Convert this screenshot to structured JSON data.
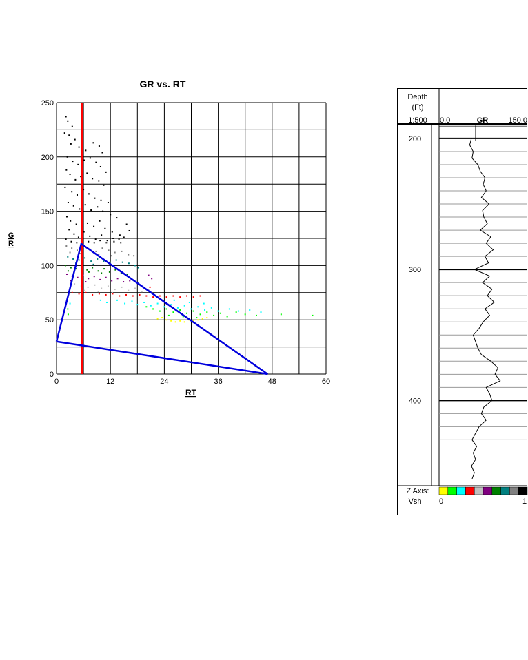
{
  "colors": {
    "background": "#ffffff",
    "grid": "#000000",
    "cutoff_line": "#ff0000",
    "triangle_lines": "#0000dd",
    "log_curve": "#000000",
    "vsh_bins": [
      "#ffff00",
      "#00ff00",
      "#00ffff",
      "#ff0000",
      "#c0c0c0",
      "#800080",
      "#008000",
      "#008080",
      "#808080",
      "#000000"
    ]
  },
  "chart_data": [
    {
      "type": "scatter",
      "title": "GR vs. RT",
      "xlabel": "RT",
      "ylabel": "GR",
      "xlim": [
        0,
        60
      ],
      "ylim": [
        0,
        250
      ],
      "x_ticks": [
        0,
        12,
        24,
        36,
        48,
        60
      ],
      "y_ticks": [
        0,
        50,
        100,
        150,
        200,
        250
      ],
      "grid": true,
      "color_axis": "Vsh",
      "vertical_line": {
        "x": 5.7,
        "color": "red"
      },
      "triangle": [
        [
          0,
          30
        ],
        [
          5.5,
          120
        ],
        [
          47,
          0
        ]
      ],
      "point_groups": [
        {
          "vsh_bin": 9,
          "color": "#000000",
          "points": [
            [
              2.1,
              237
            ],
            [
              2.5,
              233
            ],
            [
              3.5,
              228
            ],
            [
              1.8,
              222
            ],
            [
              2.8,
              220
            ],
            [
              4.1,
              216
            ],
            [
              3.2,
              212
            ],
            [
              5.0,
              209
            ],
            [
              6.5,
              206
            ],
            [
              8.2,
              213
            ],
            [
              9.5,
              210
            ],
            [
              10.2,
              204
            ],
            [
              2.4,
              200
            ],
            [
              3.6,
              196
            ],
            [
              4.8,
              193
            ],
            [
              6.2,
              197
            ],
            [
              7.5,
              199
            ],
            [
              8.8,
              195
            ],
            [
              9.8,
              191
            ],
            [
              11.0,
              186
            ],
            [
              2.2,
              188
            ],
            [
              3.0,
              184
            ],
            [
              4.2,
              179
            ],
            [
              5.4,
              182
            ],
            [
              6.8,
              185
            ],
            [
              8.0,
              180
            ],
            [
              9.4,
              178
            ],
            [
              10.5,
              174
            ],
            [
              1.9,
              172
            ],
            [
              3.4,
              168
            ],
            [
              4.6,
              165
            ],
            [
              6.0,
              170
            ],
            [
              7.2,
              166
            ],
            [
              8.5,
              162
            ],
            [
              9.9,
              160
            ],
            [
              11.5,
              158
            ],
            [
              2.6,
              158
            ],
            [
              3.8,
              155
            ],
            [
              5.1,
              152
            ],
            [
              6.4,
              156
            ],
            [
              7.7,
              151
            ],
            [
              9.1,
              154
            ],
            [
              10.3,
              150
            ],
            [
              12.0,
              147
            ],
            [
              13.4,
              144
            ],
            [
              15.6,
              138
            ],
            [
              16.2,
              132
            ],
            [
              2.3,
              145
            ],
            [
              3.1,
              141
            ],
            [
              4.4,
              138
            ],
            [
              5.6,
              143
            ],
            [
              6.9,
              139
            ],
            [
              8.3,
              136
            ],
            [
              9.6,
              141
            ],
            [
              10.8,
              134
            ],
            [
              12.4,
              131
            ],
            [
              14.1,
              128
            ],
            [
              15.0,
              126
            ],
            [
              2.8,
              133
            ],
            [
              3.9,
              129
            ],
            [
              4.9,
              126
            ],
            [
              6.1,
              131
            ],
            [
              7.4,
              127
            ],
            [
              8.7,
              124
            ],
            [
              10.0,
              128
            ],
            [
              11.3,
              123
            ],
            [
              12.8,
              122
            ],
            [
              14.3,
              121
            ],
            [
              2.1,
              124
            ],
            [
              3.3,
              122
            ],
            [
              4.5,
              121
            ],
            [
              5.9,
              124
            ],
            [
              7.1,
              122
            ],
            [
              8.4,
              121
            ],
            [
              9.7,
              123
            ],
            [
              11.1,
              121
            ],
            [
              12.6,
              125
            ],
            [
              13.9,
              124
            ]
          ]
        },
        {
          "vsh_bin": 8,
          "color": "#808080",
          "points": [
            [
              2.2,
              118
            ],
            [
              3.4,
              116
            ],
            [
              4.6,
              114
            ],
            [
              6.0,
              117
            ],
            [
              7.4,
              115
            ],
            [
              8.8,
              113
            ],
            [
              10.2,
              116
            ],
            [
              11.6,
              114
            ],
            [
              13.0,
              112
            ],
            [
              14.5,
              113
            ],
            [
              16.0,
              110
            ],
            [
              17.2,
              109
            ],
            [
              3.0,
              112
            ],
            [
              5.2,
              111
            ],
            [
              9.4,
              110
            ],
            [
              12.2,
              109
            ]
          ]
        },
        {
          "vsh_bin": 7,
          "color": "#008080",
          "points": [
            [
              2.5,
              108
            ],
            [
              3.7,
              106
            ],
            [
              5.0,
              105
            ],
            [
              6.3,
              107
            ],
            [
              7.7,
              104
            ],
            [
              9.1,
              106
            ],
            [
              10.5,
              104
            ],
            [
              11.9,
              103
            ],
            [
              13.3,
              105
            ],
            [
              14.7,
              103
            ],
            [
              16.1,
              102
            ],
            [
              17.5,
              100
            ],
            [
              18.2,
              98
            ],
            [
              4.3,
              102
            ],
            [
              8.2,
              101
            ],
            [
              12.6,
              100
            ]
          ]
        },
        {
          "vsh_bin": 6,
          "color": "#008000",
          "points": [
            [
              2.0,
              100
            ],
            [
              3.2,
              98
            ],
            [
              4.4,
              97
            ],
            [
              5.6,
              99
            ],
            [
              6.8,
              96
            ],
            [
              8.0,
              98
            ],
            [
              9.3,
              95
            ],
            [
              10.6,
              97
            ],
            [
              11.8,
              94
            ],
            [
              13.1,
              96
            ],
            [
              14.4,
              93
            ],
            [
              15.8,
              92
            ],
            [
              2.6,
              95
            ],
            [
              7.2,
              94
            ],
            [
              10.0,
              93
            ]
          ]
        },
        {
          "vsh_bin": 5,
          "color": "#800080",
          "points": [
            [
              2.3,
              92
            ],
            [
              3.5,
              90
            ],
            [
              4.7,
              89
            ],
            [
              5.9,
              91
            ],
            [
              7.1,
              88
            ],
            [
              8.4,
              90
            ],
            [
              9.7,
              87
            ],
            [
              11.0,
              89
            ],
            [
              12.3,
              86
            ],
            [
              13.6,
              88
            ],
            [
              14.9,
              85
            ],
            [
              16.3,
              86
            ],
            [
              20.5,
              91
            ],
            [
              21.2,
              88
            ],
            [
              3.1,
              86
            ],
            [
              6.5,
              85
            ]
          ]
        },
        {
          "vsh_bin": 4,
          "color": "#c0c0c0",
          "points": [
            [
              4.0,
              83
            ],
            [
              5.5,
              81
            ],
            [
              7.0,
              80
            ],
            [
              8.5,
              82
            ],
            [
              10.0,
              79
            ],
            [
              11.5,
              81
            ],
            [
              13.0,
              78
            ],
            [
              14.5,
              80
            ],
            [
              16.0,
              77
            ],
            [
              17.5,
              79
            ],
            [
              19.0,
              76
            ],
            [
              20.5,
              78
            ],
            [
              6.2,
              77
            ],
            [
              9.3,
              76
            ],
            [
              12.4,
              75
            ]
          ]
        },
        {
          "vsh_bin": 3,
          "color": "#ff0000",
          "points": [
            [
              3.5,
              75
            ],
            [
              5.0,
              74
            ],
            [
              6.5,
              75
            ],
            [
              8.0,
              73
            ],
            [
              9.5,
              74
            ],
            [
              11.0,
              73
            ],
            [
              12.5,
              74
            ],
            [
              14.0,
              72
            ],
            [
              15.5,
              73
            ],
            [
              17.0,
              72
            ],
            [
              18.5,
              73
            ],
            [
              20.0,
              72
            ],
            [
              21.5,
              71
            ],
            [
              23.0,
              72
            ],
            [
              24.5,
              71
            ],
            [
              26.0,
              72
            ],
            [
              27.5,
              71
            ],
            [
              29.0,
              72
            ],
            [
              30.5,
              71
            ],
            [
              32.0,
              72
            ],
            [
              20.8,
              80
            ],
            [
              21.1,
              75
            ]
          ]
        },
        {
          "vsh_bin": 2,
          "color": "#00ffff",
          "points": [
            [
              2.4,
              70
            ],
            [
              3.0,
              65
            ],
            [
              9.8,
              68
            ],
            [
              11.2,
              66
            ],
            [
              13.5,
              68
            ],
            [
              15.2,
              65
            ],
            [
              16.8,
              67
            ],
            [
              18.0,
              64
            ],
            [
              19.5,
              66
            ],
            [
              21.0,
              63
            ],
            [
              22.5,
              65
            ],
            [
              24.0,
              62
            ],
            [
              25.5,
              64
            ],
            [
              27.0,
              61
            ],
            [
              28.5,
              63
            ],
            [
              30.0,
              60
            ],
            [
              31.5,
              62
            ],
            [
              33.0,
              59
            ],
            [
              34.5,
              61
            ],
            [
              36.0,
              58
            ],
            [
              38.5,
              60
            ],
            [
              40.5,
              58
            ],
            [
              43.0,
              59
            ],
            [
              45.5,
              57
            ],
            [
              26.2,
              68
            ],
            [
              29.6,
              66
            ],
            [
              32.8,
              65
            ]
          ]
        },
        {
          "vsh_bin": 1,
          "color": "#00ff00",
          "points": [
            [
              2.5,
              60
            ],
            [
              2.6,
              55
            ],
            [
              20.0,
              62
            ],
            [
              21.5,
              60
            ],
            [
              23.0,
              58
            ],
            [
              24.5,
              60
            ],
            [
              26.0,
              57
            ],
            [
              27.5,
              59
            ],
            [
              29.0,
              56
            ],
            [
              30.5,
              58
            ],
            [
              32.0,
              55
            ],
            [
              33.5,
              57
            ],
            [
              35.0,
              54
            ],
            [
              36.5,
              56
            ],
            [
              38.0,
              53
            ],
            [
              40.0,
              57
            ],
            [
              42.0,
              55
            ],
            [
              44.5,
              54
            ],
            [
              50.0,
              55
            ],
            [
              57.0,
              54
            ],
            [
              25.0,
              54
            ],
            [
              28.2,
              53
            ],
            [
              31.2,
              52
            ]
          ]
        },
        {
          "vsh_bin": 0,
          "color": "#ffff00",
          "points": [
            [
              22.5,
              51
            ],
            [
              23.5,
              52
            ],
            [
              24.5,
              50
            ],
            [
              25.5,
              49
            ],
            [
              26.5,
              48
            ],
            [
              27.5,
              49
            ],
            [
              28.5,
              48
            ],
            [
              29.5,
              50
            ],
            [
              30.5,
              49
            ],
            [
              31.5,
              50
            ],
            [
              32.5,
              51
            ],
            [
              33.5,
              52
            ]
          ]
        }
      ]
    },
    {
      "type": "line",
      "series_label": "GR",
      "depth_header": "Depth",
      "depth_unit": "(Ft)",
      "scale": "1:500",
      "gr_min_label": "0.0",
      "gr_max_label": "150.0",
      "gr_range": [
        0,
        150
      ],
      "depth_range": [
        189,
        465
      ],
      "depth_labels": [
        200,
        300,
        400
      ],
      "z_axis_label": "Z Axis:",
      "z_var": "Vsh",
      "z_min": "0",
      "z_max": "1",
      "depth": [
        200,
        205,
        210,
        215,
        220,
        225,
        230,
        235,
        240,
        245,
        250,
        255,
        260,
        265,
        270,
        275,
        280,
        285,
        290,
        295,
        300,
        305,
        310,
        315,
        320,
        325,
        330,
        335,
        340,
        345,
        350,
        355,
        360,
        365,
        370,
        375,
        380,
        385,
        390,
        395,
        400,
        405,
        410,
        415,
        420,
        425,
        430,
        435,
        440,
        445,
        450,
        455,
        460
      ],
      "gr": [
        55,
        52,
        58,
        56,
        66,
        70,
        78,
        75,
        80,
        72,
        85,
        74,
        76,
        82,
        70,
        88,
        80,
        92,
        78,
        84,
        60,
        86,
        74,
        90,
        82,
        94,
        78,
        86,
        75,
        68,
        58,
        62,
        66,
        72,
        88,
        100,
        95,
        104,
        80,
        86,
        90,
        76,
        72,
        80,
        68,
        62,
        56,
        64,
        58,
        62,
        55,
        60,
        56
      ]
    }
  ]
}
